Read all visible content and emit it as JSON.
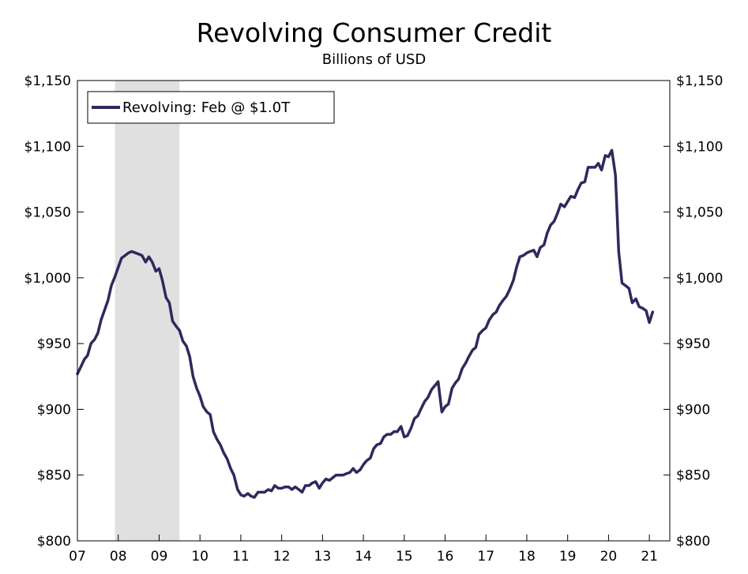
{
  "chart_data": {
    "type": "line",
    "title": "Revolving Consumer Credit",
    "subtitle": "Billions of USD",
    "xlabel": "",
    "ylabel": "",
    "y_range": [
      800,
      1150
    ],
    "y_ticks": [
      800,
      850,
      900,
      950,
      1000,
      1050,
      1100,
      1150
    ],
    "y_tick_labels": [
      "$800",
      "$850",
      "$900",
      "$950",
      "$1,000",
      "$1,050",
      "$1,100",
      "$1,150"
    ],
    "x_range": [
      2007.0,
      2021.5
    ],
    "x_ticks": [
      2007,
      2008,
      2009,
      2010,
      2011,
      2012,
      2013,
      2014,
      2015,
      2016,
      2017,
      2018,
      2019,
      2020,
      2021
    ],
    "x_tick_labels": [
      "07",
      "08",
      "09",
      "10",
      "11",
      "12",
      "13",
      "14",
      "15",
      "16",
      "17",
      "18",
      "19",
      "20",
      "21"
    ],
    "grid": false,
    "legend": {
      "position": "top-left",
      "entries": [
        "Revolving: Feb @ $1.0T"
      ]
    },
    "recession_shading": [
      {
        "start": 2007.92,
        "end": 2009.5
      }
    ],
    "colors": {
      "series": "#2e2a5c",
      "recession": "#e0e0e0",
      "axis": "#000000"
    },
    "series": [
      {
        "name": "Revolving: Feb @ $1.0T",
        "points": [
          [
            2007.0,
            927
          ],
          [
            2007.08,
            932
          ],
          [
            2007.17,
            938
          ],
          [
            2007.25,
            941
          ],
          [
            2007.33,
            950
          ],
          [
            2007.42,
            953
          ],
          [
            2007.5,
            958
          ],
          [
            2007.58,
            968
          ],
          [
            2007.67,
            976
          ],
          [
            2007.75,
            983
          ],
          [
            2007.83,
            994
          ],
          [
            2007.92,
            1001
          ],
          [
            2008.0,
            1008
          ],
          [
            2008.08,
            1015
          ],
          [
            2008.17,
            1017
          ],
          [
            2008.25,
            1019
          ],
          [
            2008.33,
            1020
          ],
          [
            2008.42,
            1019
          ],
          [
            2008.5,
            1018
          ],
          [
            2008.58,
            1017
          ],
          [
            2008.67,
            1012
          ],
          [
            2008.75,
            1016
          ],
          [
            2008.83,
            1012
          ],
          [
            2008.92,
            1005
          ],
          [
            2009.0,
            1007
          ],
          [
            2009.08,
            998
          ],
          [
            2009.17,
            985
          ],
          [
            2009.25,
            981
          ],
          [
            2009.33,
            967
          ],
          [
            2009.42,
            963
          ],
          [
            2009.5,
            960
          ],
          [
            2009.58,
            952
          ],
          [
            2009.67,
            948
          ],
          [
            2009.75,
            940
          ],
          [
            2009.83,
            925
          ],
          [
            2009.92,
            916
          ],
          [
            2010.0,
            910
          ],
          [
            2010.08,
            902
          ],
          [
            2010.17,
            898
          ],
          [
            2010.25,
            896
          ],
          [
            2010.33,
            883
          ],
          [
            2010.42,
            877
          ],
          [
            2010.5,
            873
          ],
          [
            2010.58,
            867
          ],
          [
            2010.67,
            862
          ],
          [
            2010.75,
            855
          ],
          [
            2010.83,
            850
          ],
          [
            2010.92,
            839
          ],
          [
            2011.0,
            835
          ],
          [
            2011.08,
            834
          ],
          [
            2011.17,
            836
          ],
          [
            2011.25,
            834
          ],
          [
            2011.33,
            833
          ],
          [
            2011.42,
            837
          ],
          [
            2011.5,
            837
          ],
          [
            2011.58,
            837
          ],
          [
            2011.67,
            839
          ],
          [
            2011.75,
            838
          ],
          [
            2011.83,
            842
          ],
          [
            2011.92,
            840
          ],
          [
            2012.0,
            840
          ],
          [
            2012.08,
            841
          ],
          [
            2012.17,
            841
          ],
          [
            2012.25,
            839
          ],
          [
            2012.33,
            841
          ],
          [
            2012.42,
            839
          ],
          [
            2012.5,
            837
          ],
          [
            2012.58,
            842
          ],
          [
            2012.67,
            842
          ],
          [
            2012.75,
            844
          ],
          [
            2012.83,
            845
          ],
          [
            2012.92,
            840
          ],
          [
            2013.0,
            844
          ],
          [
            2013.08,
            847
          ],
          [
            2013.17,
            846
          ],
          [
            2013.25,
            848
          ],
          [
            2013.33,
            850
          ],
          [
            2013.42,
            850
          ],
          [
            2013.5,
            850
          ],
          [
            2013.58,
            851
          ],
          [
            2013.67,
            852
          ],
          [
            2013.75,
            855
          ],
          [
            2013.83,
            852
          ],
          [
            2013.92,
            854
          ],
          [
            2014.0,
            858
          ],
          [
            2014.08,
            861
          ],
          [
            2014.17,
            863
          ],
          [
            2014.25,
            870
          ],
          [
            2014.33,
            873
          ],
          [
            2014.42,
            874
          ],
          [
            2014.5,
            879
          ],
          [
            2014.58,
            881
          ],
          [
            2014.67,
            881
          ],
          [
            2014.75,
            883
          ],
          [
            2014.83,
            883
          ],
          [
            2014.92,
            887
          ],
          [
            2015.0,
            879
          ],
          [
            2015.08,
            880
          ],
          [
            2015.17,
            886
          ],
          [
            2015.25,
            893
          ],
          [
            2015.33,
            895
          ],
          [
            2015.42,
            901
          ],
          [
            2015.5,
            906
          ],
          [
            2015.58,
            909
          ],
          [
            2015.67,
            915
          ],
          [
            2015.75,
            918
          ],
          [
            2015.83,
            921
          ],
          [
            2015.92,
            898
          ],
          [
            2016.0,
            902
          ],
          [
            2016.08,
            904
          ],
          [
            2016.17,
            916
          ],
          [
            2016.25,
            920
          ],
          [
            2016.33,
            923
          ],
          [
            2016.42,
            931
          ],
          [
            2016.5,
            935
          ],
          [
            2016.58,
            940
          ],
          [
            2016.67,
            945
          ],
          [
            2016.75,
            947
          ],
          [
            2016.83,
            957
          ],
          [
            2016.92,
            960
          ],
          [
            2017.0,
            962
          ],
          [
            2017.08,
            968
          ],
          [
            2017.17,
            972
          ],
          [
            2017.25,
            974
          ],
          [
            2017.33,
            979
          ],
          [
            2017.42,
            983
          ],
          [
            2017.5,
            986
          ],
          [
            2017.58,
            991
          ],
          [
            2017.67,
            998
          ],
          [
            2017.75,
            1008
          ],
          [
            2017.83,
            1016
          ],
          [
            2017.92,
            1017
          ],
          [
            2018.0,
            1019
          ],
          [
            2018.08,
            1020
          ],
          [
            2018.17,
            1021
          ],
          [
            2018.25,
            1016
          ],
          [
            2018.33,
            1023
          ],
          [
            2018.42,
            1025
          ],
          [
            2018.5,
            1034
          ],
          [
            2018.58,
            1040
          ],
          [
            2018.67,
            1043
          ],
          [
            2018.75,
            1049
          ],
          [
            2018.83,
            1056
          ],
          [
            2018.92,
            1054
          ],
          [
            2019.0,
            1058
          ],
          [
            2019.08,
            1062
          ],
          [
            2019.17,
            1061
          ],
          [
            2019.25,
            1067
          ],
          [
            2019.33,
            1072
          ],
          [
            2019.42,
            1073
          ],
          [
            2019.5,
            1084
          ],
          [
            2019.58,
            1084
          ],
          [
            2019.67,
            1084
          ],
          [
            2019.75,
            1087
          ],
          [
            2019.83,
            1082
          ],
          [
            2019.92,
            1093
          ],
          [
            2020.0,
            1092
          ],
          [
            2020.08,
            1097
          ],
          [
            2020.17,
            1078
          ],
          [
            2020.25,
            1020
          ],
          [
            2020.33,
            996
          ],
          [
            2020.42,
            994
          ],
          [
            2020.5,
            992
          ],
          [
            2020.58,
            981
          ],
          [
            2020.67,
            984
          ],
          [
            2020.75,
            978
          ],
          [
            2020.83,
            977
          ],
          [
            2020.92,
            975
          ],
          [
            2021.0,
            966
          ],
          [
            2021.08,
            974
          ]
        ]
      }
    ]
  }
}
